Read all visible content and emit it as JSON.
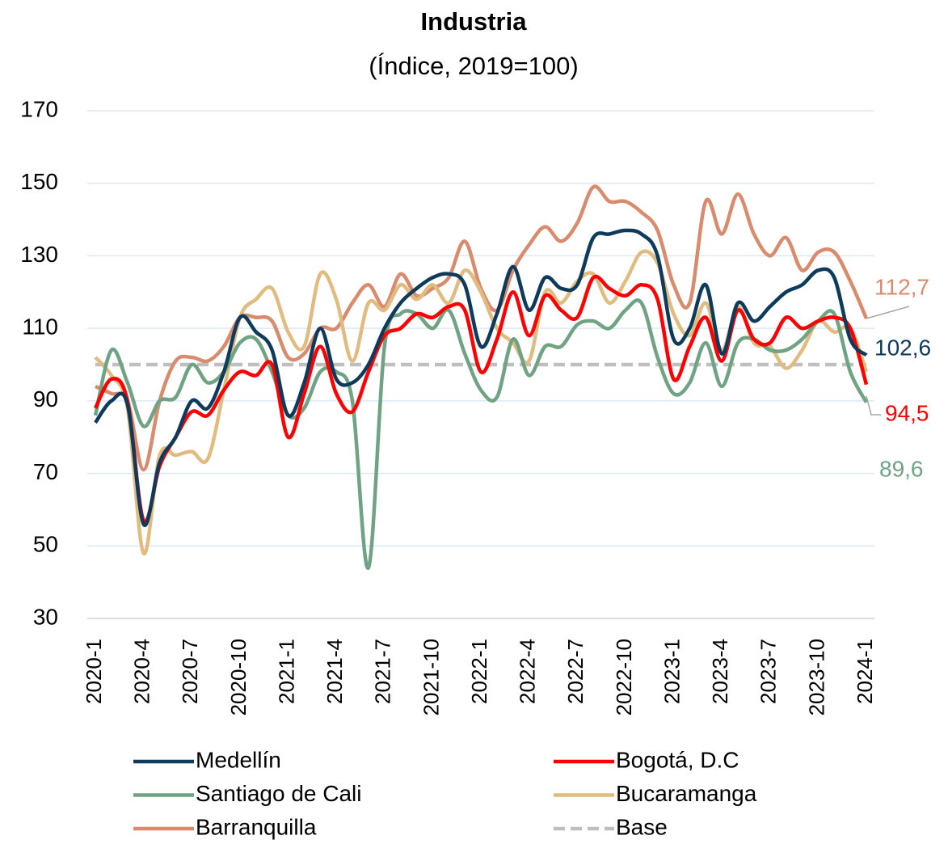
{
  "chart_data": {
    "type": "line",
    "title": "Industria",
    "subtitle": "(Índice, 2019=100)",
    "categories": [
      "2020-1",
      null,
      null,
      "2020-4",
      null,
      null,
      "2020-7",
      null,
      null,
      "2020-10",
      null,
      null,
      "2021-1",
      null,
      null,
      "2021-4",
      null,
      null,
      "2021-7",
      null,
      null,
      "2021-10",
      null,
      null,
      "2022-1",
      null,
      null,
      "2022-4",
      null,
      null,
      "2022-7",
      null,
      null,
      "2022-10",
      null,
      null,
      "2023-1",
      null,
      null,
      "2023-4",
      null,
      null,
      "2023-7",
      null,
      null,
      "2023-10",
      null,
      null,
      "2024-1"
    ],
    "ylim": [
      30,
      170
    ],
    "yticks": [
      30,
      50,
      70,
      90,
      110,
      130,
      150,
      170
    ],
    "grid": true,
    "series": [
      {
        "name": "Medellín",
        "color": "#0e3b5c",
        "values": [
          84,
          90,
          89,
          56,
          73,
          80,
          90,
          88,
          98,
          113,
          109,
          104,
          86,
          95,
          110,
          96,
          95,
          100,
          110,
          117,
          121,
          124,
          125,
          122,
          105,
          114,
          127,
          115,
          124,
          121,
          122,
          135,
          136,
          137,
          136,
          130,
          107,
          110,
          122,
          103,
          117,
          112,
          116,
          120,
          122,
          126,
          124,
          107,
          102.6
        ],
        "value_labels": [
          null,
          null,
          null,
          null,
          null,
          null,
          null,
          null,
          null,
          null,
          null,
          null,
          null,
          null,
          null,
          null,
          null,
          null,
          null,
          null,
          null,
          null,
          null,
          null,
          null,
          null,
          null,
          null,
          null,
          null,
          null,
          null,
          null,
          null,
          null,
          null,
          null,
          null,
          null,
          null,
          null,
          null,
          null,
          null,
          null,
          null,
          null,
          null,
          "102,6"
        ]
      },
      {
        "name": "Bogotá, D.C",
        "color": "#ff0000",
        "values": [
          88,
          96,
          90,
          57,
          72,
          80,
          87,
          86,
          93,
          98,
          97,
          100,
          80,
          92,
          105,
          92,
          87,
          98,
          108,
          110,
          114,
          113,
          116,
          115,
          98,
          107,
          120,
          108,
          119,
          115,
          113,
          124,
          121,
          119,
          122,
          118,
          96,
          105,
          113,
          101,
          115,
          107,
          106,
          113,
          110,
          112,
          113,
          110,
          94.5
        ],
        "value_labels": [
          null,
          null,
          null,
          null,
          null,
          null,
          null,
          null,
          null,
          null,
          null,
          null,
          null,
          null,
          null,
          null,
          null,
          null,
          null,
          null,
          null,
          null,
          null,
          null,
          null,
          null,
          null,
          null,
          null,
          null,
          null,
          null,
          null,
          null,
          null,
          null,
          null,
          null,
          null,
          null,
          null,
          null,
          null,
          null,
          null,
          null,
          null,
          null,
          "94,5"
        ]
      },
      {
        "name": "Santiago de Cali",
        "color": "#6fa383",
        "values": [
          86,
          104,
          95,
          83,
          90,
          91,
          100,
          95,
          98,
          106,
          107,
          98,
          86,
          88,
          98,
          98,
          90,
          44,
          105,
          114,
          114,
          110,
          115,
          103,
          93,
          91,
          107,
          97,
          105,
          105,
          111,
          112,
          110,
          115,
          117,
          102,
          92,
          95,
          106,
          94,
          106,
          107,
          104,
          104,
          107,
          112,
          114,
          98,
          89.6
        ],
        "value_labels": [
          null,
          null,
          null,
          null,
          null,
          null,
          null,
          null,
          null,
          null,
          null,
          null,
          null,
          null,
          null,
          null,
          null,
          null,
          null,
          null,
          null,
          null,
          null,
          null,
          null,
          null,
          null,
          null,
          null,
          null,
          null,
          null,
          null,
          null,
          null,
          null,
          null,
          null,
          null,
          null,
          null,
          null,
          null,
          null,
          null,
          null,
          null,
          null,
          "89,6"
        ]
      },
      {
        "name": "Bucaramanga",
        "color": "#e1bc80",
        "values": [
          102,
          97,
          88,
          48,
          75,
          75,
          76,
          74,
          93,
          113,
          118,
          121,
          109,
          105,
          125,
          118,
          101,
          117,
          115,
          122,
          118,
          122,
          117,
          126,
          120,
          110,
          106,
          101,
          120,
          117,
          123,
          125,
          117,
          123,
          131,
          128,
          114,
          108,
          117,
          104,
          116,
          106,
          105,
          99,
          104,
          112,
          109,
          110,
          98
        ]
      },
      {
        "name": "Barranquilla",
        "color": "#d98b6e",
        "values": [
          94,
          92,
          90,
          71,
          90,
          101,
          102,
          101,
          105,
          113,
          113,
          112,
          102,
          103,
          110,
          110,
          117,
          122,
          116,
          125,
          119,
          121,
          124,
          134,
          121,
          115,
          126,
          133,
          138,
          134,
          139,
          149,
          145,
          145,
          142,
          137,
          122,
          117,
          145,
          136,
          147,
          136,
          130,
          135,
          126,
          131,
          131,
          123,
          112.7
        ],
        "value_labels": [
          null,
          null,
          null,
          null,
          null,
          null,
          null,
          null,
          null,
          null,
          null,
          null,
          null,
          null,
          null,
          null,
          null,
          null,
          null,
          null,
          null,
          null,
          null,
          null,
          null,
          null,
          null,
          null,
          null,
          null,
          null,
          null,
          null,
          null,
          null,
          null,
          null,
          null,
          null,
          null,
          null,
          null,
          null,
          null,
          null,
          null,
          null,
          null,
          "112,7"
        ]
      },
      {
        "name": "Base",
        "color": "#bfbfbf",
        "dashed": true,
        "values": [
          100,
          100,
          100,
          100,
          100,
          100,
          100,
          100,
          100,
          100,
          100,
          100,
          100,
          100,
          100,
          100,
          100,
          100,
          100,
          100,
          100,
          100,
          100,
          100,
          100,
          100,
          100,
          100,
          100,
          100,
          100,
          100,
          100,
          100,
          100,
          100,
          100,
          100,
          100,
          100,
          100,
          100,
          100,
          100,
          100,
          100,
          100,
          100,
          100
        ]
      }
    ]
  }
}
